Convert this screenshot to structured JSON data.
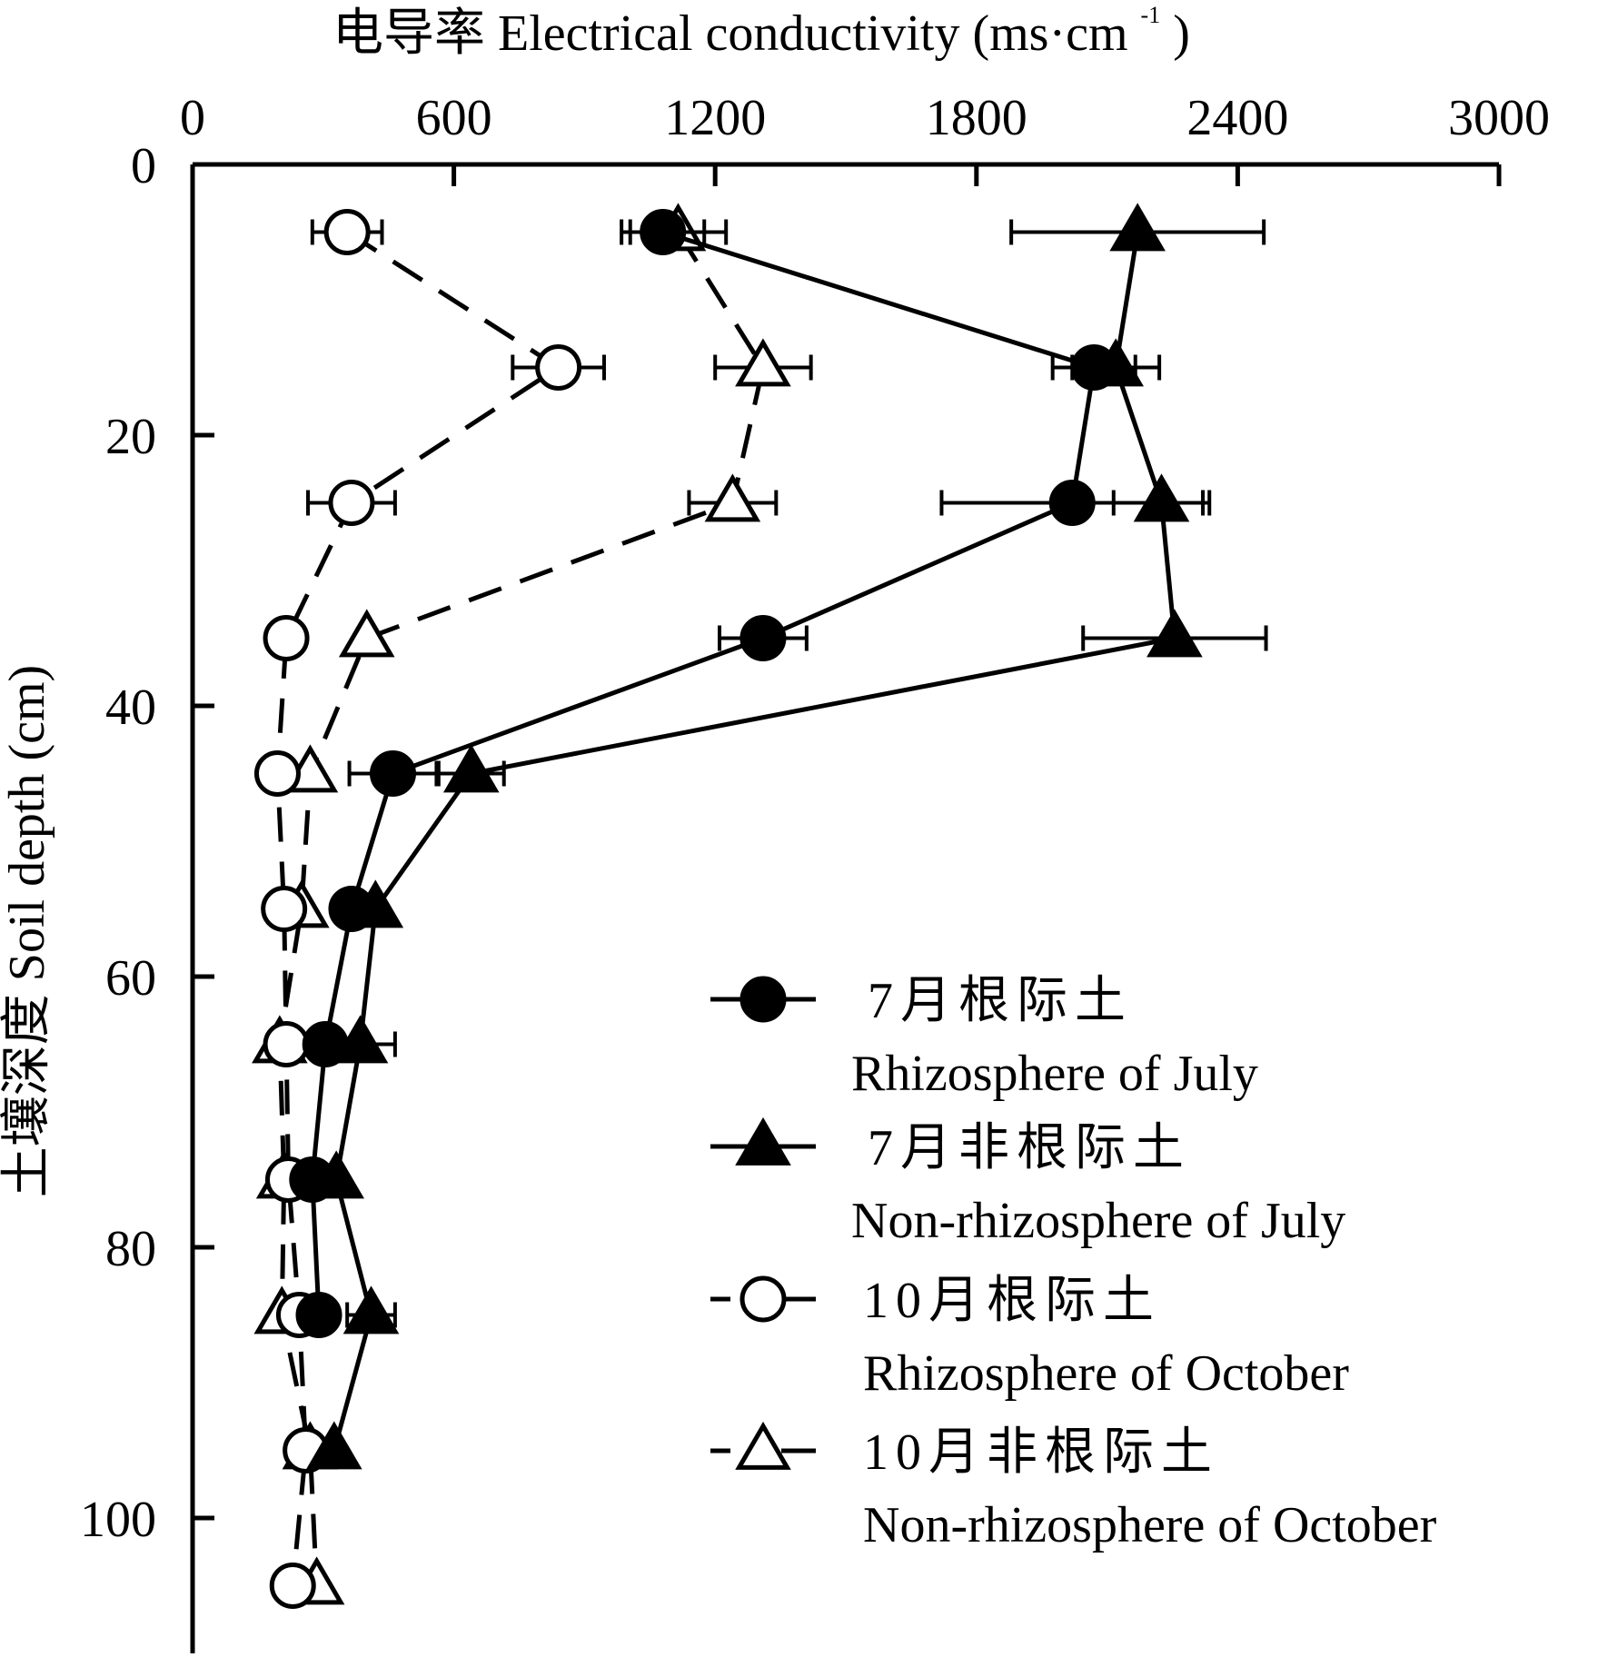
{
  "chart_data": {
    "type": "line",
    "title": "",
    "xlabel": "电导率 Electrical conductivity (ms·cm",
    "xlabel_sup": "-1",
    "xlabel_close": ")",
    "ylabel": "土壤深度 Soil depth (cm)",
    "x_axis_position": "top",
    "y_axis_inverted": true,
    "xlim": [
      0,
      3000
    ],
    "ylim": [
      0,
      110
    ],
    "xticks": [
      0,
      600,
      1200,
      1800,
      2400,
      3000
    ],
    "xtick_labels": [
      "0",
      "600",
      "1200",
      "1800",
      "2400",
      "3000"
    ],
    "yticks": [
      0,
      20,
      40,
      60,
      80,
      100
    ],
    "ytick_labels": [
      "0",
      "20",
      "40",
      "60",
      "80",
      "100"
    ],
    "grid": false,
    "legend_position": "bottom-right",
    "depths": [
      5,
      15,
      25,
      35,
      45,
      55,
      65,
      75,
      85,
      95,
      105
    ],
    "series": [
      {
        "name_cn": "7月根际土",
        "name_en": "Rhizosphere of July",
        "marker": "circle-filled",
        "line": "solid",
        "points": [
          {
            "depth": 5,
            "ec": 1080,
            "err": 95
          },
          {
            "depth": 15,
            "ec": 2070,
            "err": 95
          },
          {
            "depth": 25,
            "ec": 2020,
            "err": 300
          },
          {
            "depth": 35,
            "ec": 1310,
            "err": 100
          },
          {
            "depth": 45,
            "ec": 460,
            "err": 100
          },
          {
            "depth": 55,
            "ec": 365
          },
          {
            "depth": 65,
            "ec": 305
          },
          {
            "depth": 75,
            "ec": 275
          },
          {
            "depth": 85,
            "ec": 290
          }
        ]
      },
      {
        "name_cn": "7月非根际土",
        "name_en": "Non-rhizosphere of July",
        "marker": "triangle-filled",
        "line": "solid",
        "points": [
          {
            "depth": 5,
            "ec": 2170,
            "err": 290
          },
          {
            "depth": 15,
            "ec": 2120,
            "err": 100
          },
          {
            "depth": 25,
            "ec": 2225,
            "err": 110
          },
          {
            "depth": 35,
            "ec": 2255,
            "err": 210
          },
          {
            "depth": 45,
            "ec": 640,
            "err": 75
          },
          {
            "depth": 55,
            "ec": 420
          },
          {
            "depth": 65,
            "ec": 385,
            "err": 80
          },
          {
            "depth": 75,
            "ec": 330
          },
          {
            "depth": 85,
            "ec": 410,
            "err": 55
          },
          {
            "depth": 95,
            "ec": 325
          }
        ]
      },
      {
        "name_cn": "10月根际土",
        "name_en": "Rhizosphere of October",
        "marker": "circle-open",
        "line": "dashed",
        "points": [
          {
            "depth": 5,
            "ec": 355,
            "err": 80
          },
          {
            "depth": 15,
            "ec": 840,
            "err": 105
          },
          {
            "depth": 25,
            "ec": 365,
            "err": 100
          },
          {
            "depth": 35,
            "ec": 215
          },
          {
            "depth": 45,
            "ec": 195
          },
          {
            "depth": 55,
            "ec": 210
          },
          {
            "depth": 65,
            "ec": 215
          },
          {
            "depth": 75,
            "ec": 220
          },
          {
            "depth": 85,
            "ec": 245
          },
          {
            "depth": 95,
            "ec": 260
          },
          {
            "depth": 105,
            "ec": 230
          }
        ]
      },
      {
        "name_cn": "10月非根际土",
        "name_en": "Non-rhizosphere of October",
        "marker": "triangle-open",
        "line": "dashed",
        "points": [
          {
            "depth": 5,
            "ec": 1115,
            "err": 110
          },
          {
            "depth": 15,
            "ec": 1310,
            "err": 110
          },
          {
            "depth": 25,
            "ec": 1240,
            "err": 100
          },
          {
            "depth": 35,
            "ec": 400
          },
          {
            "depth": 45,
            "ec": 270
          },
          {
            "depth": 55,
            "ec": 250
          },
          {
            "depth": 65,
            "ec": 200
          },
          {
            "depth": 75,
            "ec": 210
          },
          {
            "depth": 85,
            "ec": 205
          },
          {
            "depth": 95,
            "ec": 270
          },
          {
            "depth": 105,
            "ec": 285
          }
        ]
      }
    ]
  }
}
